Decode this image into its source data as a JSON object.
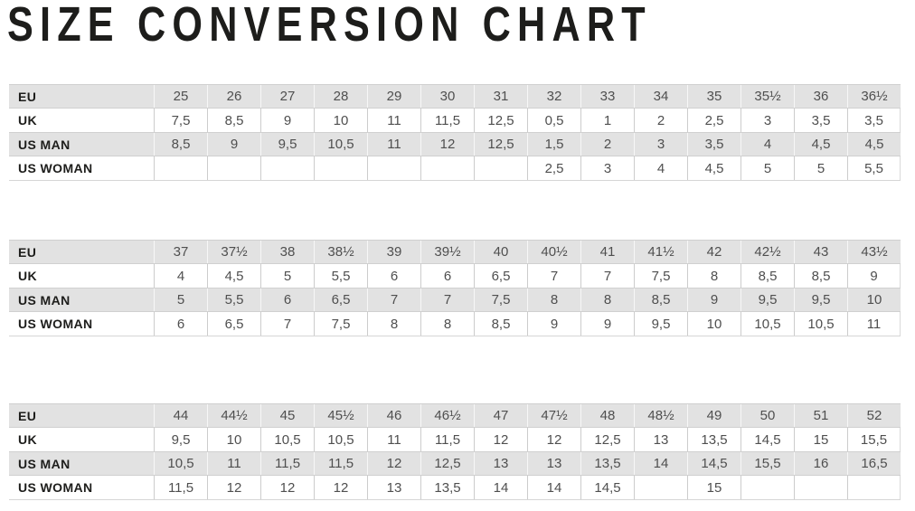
{
  "title": "SIZE CONVERSION CHART",
  "colors": {
    "row_gray": "#e2e2e2",
    "grid_line": "#cccccc",
    "label_text": "#1d1d1b",
    "value_text": "#4f4f4f"
  },
  "chart_data": [
    {
      "type": "table",
      "rows": [
        {
          "label": "EU",
          "values": [
            "25",
            "26",
            "27",
            "28",
            "29",
            "30",
            "31",
            "32",
            "33",
            "34",
            "35",
            "35½",
            "36",
            "36½"
          ]
        },
        {
          "label": "UK",
          "values": [
            "7,5",
            "8,5",
            "9",
            "10",
            "11",
            "11,5",
            "12,5",
            "0,5",
            "1",
            "2",
            "2,5",
            "3",
            "3,5",
            "3,5"
          ]
        },
        {
          "label": "US MAN",
          "values": [
            "8,5",
            "9",
            "9,5",
            "10,5",
            "11",
            "12",
            "12,5",
            "1,5",
            "2",
            "3",
            "3,5",
            "4",
            "4,5",
            "4,5"
          ]
        },
        {
          "label": "US WOMAN",
          "values": [
            "",
            "",
            "",
            "",
            "",
            "",
            "",
            "2,5",
            "3",
            "4",
            "4,5",
            "5",
            "5",
            "5,5"
          ]
        }
      ]
    },
    {
      "type": "table",
      "rows": [
        {
          "label": "EU",
          "values": [
            "37",
            "37½",
            "38",
            "38½",
            "39",
            "39½",
            "40",
            "40½",
            "41",
            "41½",
            "42",
            "42½",
            "43",
            "43½"
          ]
        },
        {
          "label": "UK",
          "values": [
            "4",
            "4,5",
            "5",
            "5,5",
            "6",
            "6",
            "6,5",
            "7",
            "7",
            "7,5",
            "8",
            "8,5",
            "8,5",
            "9"
          ]
        },
        {
          "label": "US MAN",
          "values": [
            "5",
            "5,5",
            "6",
            "6,5",
            "7",
            "7",
            "7,5",
            "8",
            "8",
            "8,5",
            "9",
            "9,5",
            "9,5",
            "10"
          ]
        },
        {
          "label": "US WOMAN",
          "values": [
            "6",
            "6,5",
            "7",
            "7,5",
            "8",
            "8",
            "8,5",
            "9",
            "9",
            "9,5",
            "10",
            "10,5",
            "10,5",
            "11"
          ]
        }
      ]
    },
    {
      "type": "table",
      "rows": [
        {
          "label": "EU",
          "values": [
            "44",
            "44½",
            "45",
            "45½",
            "46",
            "46½",
            "47",
            "47½",
            "48",
            "48½",
            "49",
            "50",
            "51",
            "52"
          ]
        },
        {
          "label": "UK",
          "values": [
            "9,5",
            "10",
            "10,5",
            "10,5",
            "11",
            "11,5",
            "12",
            "12",
            "12,5",
            "13",
            "13,5",
            "14,5",
            "15",
            "15,5"
          ]
        },
        {
          "label": "US MAN",
          "values": [
            "10,5",
            "11",
            "11,5",
            "11,5",
            "12",
            "12,5",
            "13",
            "13",
            "13,5",
            "14",
            "14,5",
            "15,5",
            "16",
            "16,5"
          ]
        },
        {
          "label": "US WOMAN",
          "values": [
            "11,5",
            "12",
            "12",
            "12",
            "13",
            "13,5",
            "14",
            "14",
            "14,5",
            "",
            "15",
            "",
            "",
            ""
          ]
        }
      ]
    }
  ]
}
